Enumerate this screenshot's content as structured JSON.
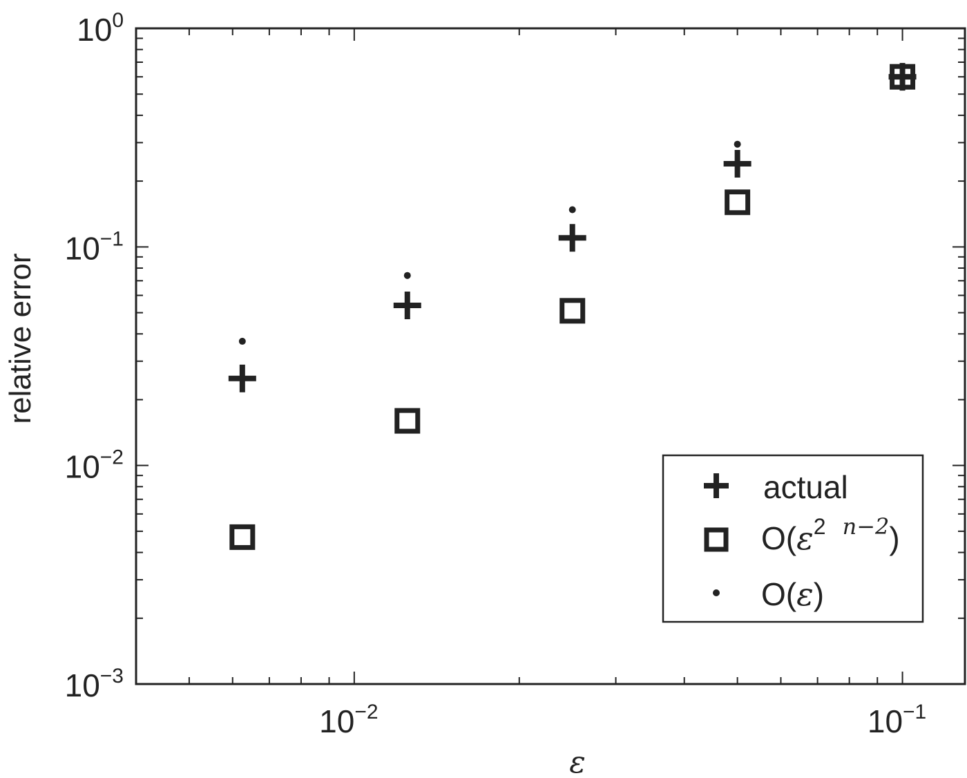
{
  "chart_data": {
    "type": "scatter",
    "title": "",
    "xlabel": "ε",
    "ylabel": "relative error",
    "xscale": "log",
    "yscale": "log",
    "xlim": [
      0.004,
      0.13
    ],
    "ylim": [
      0.001,
      1
    ],
    "grid": false,
    "x_ticks": [
      {
        "value": 0.01,
        "base": "10",
        "exp": "−2"
      },
      {
        "value": 0.1,
        "base": "10",
        "exp": "−1"
      }
    ],
    "y_ticks": [
      {
        "value": 0.001,
        "base": "10",
        "exp": "−3"
      },
      {
        "value": 0.01,
        "base": "10",
        "exp": "−2"
      },
      {
        "value": 0.1,
        "base": "10",
        "exp": "−1"
      },
      {
        "value": 1,
        "base": "10",
        "exp": "0"
      }
    ],
    "legend_position": "bottom-right",
    "series": [
      {
        "name": "actual",
        "marker": "plus",
        "x": [
          0.00625,
          0.0125,
          0.025,
          0.05,
          0.1
        ],
        "y": [
          0.025,
          0.054,
          0.11,
          0.24,
          0.6
        ]
      },
      {
        "name": "O(ε2 n−2)",
        "legend_parts": [
          "O(",
          "ε",
          "2",
          "n−2",
          ")"
        ],
        "marker": "square",
        "x": [
          0.00625,
          0.0125,
          0.025,
          0.05,
          0.1
        ],
        "y": [
          0.0047,
          0.016,
          0.051,
          0.16,
          0.6
        ]
      },
      {
        "name": "O(ε)",
        "legend_parts": [
          "O(",
          "ε",
          ")"
        ],
        "marker": "dot",
        "x": [
          0.00625,
          0.0125,
          0.025,
          0.05,
          0.1
        ],
        "y": [
          0.037,
          0.074,
          0.148,
          0.295,
          0.6
        ]
      }
    ]
  }
}
